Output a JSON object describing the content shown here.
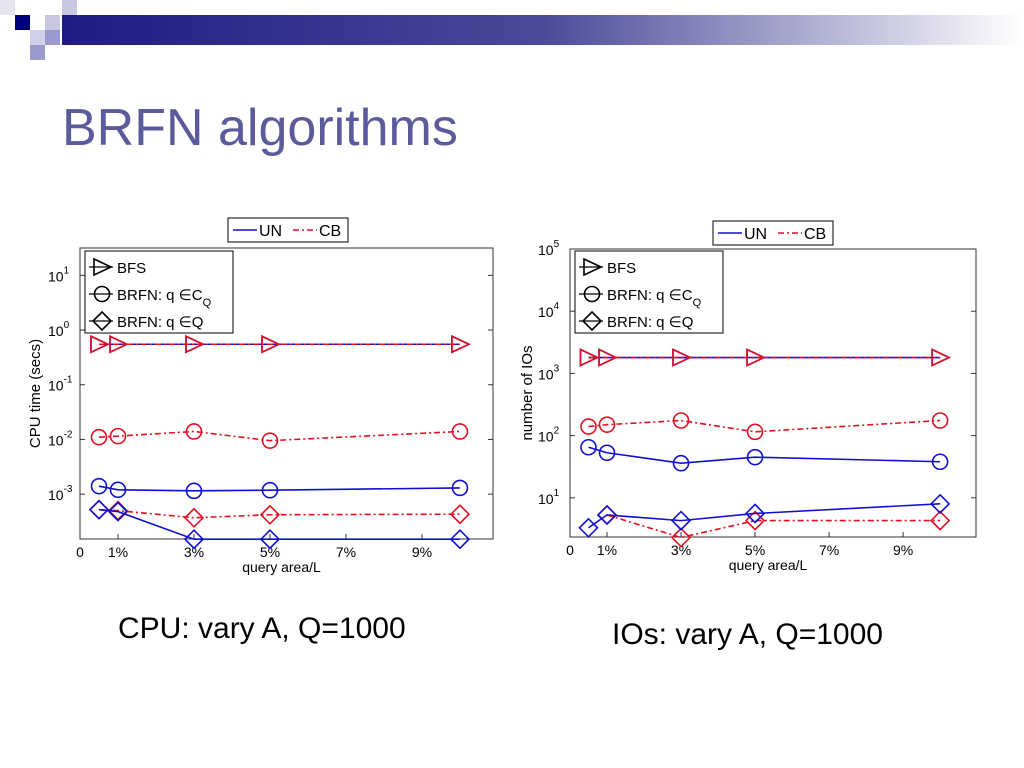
{
  "slide": {
    "title": "BRFN algorithms",
    "captions": [
      "CPU: vary A, Q=1000",
      "IOs: vary A, Q=1000"
    ]
  },
  "colors": {
    "UN": "#1010d0",
    "CB": "#e01020",
    "title": "#5b5b9b"
  },
  "chart_data": [
    {
      "type": "line",
      "ylabel": "CPU time (secs)",
      "xlabel": "query area/L",
      "yscale": "log",
      "ylim_exp": [
        -3.82,
        1.5
      ],
      "ytick_exps": [
        1,
        0,
        -1,
        -2,
        -3
      ],
      "xlim": [
        0,
        10.87
      ],
      "xticks": [
        0,
        1,
        3,
        5,
        7,
        9
      ],
      "xtick_labels": [
        "0",
        "1%",
        "3%",
        "5%",
        "7%",
        "9%"
      ],
      "x": [
        0.5,
        1,
        3,
        5,
        10
      ],
      "legend_styles": [
        "UN",
        "CB"
      ],
      "legend_markers": [
        {
          "label": "BFS",
          "marker": "triangle"
        },
        {
          "label": "BRFN: q ∈C",
          "sub": "Q",
          "marker": "circle"
        },
        {
          "label": "BRFN: q ∈Q",
          "marker": "diamond"
        }
      ],
      "series": [
        {
          "name": "BFS UN",
          "style": "UN",
          "marker": "triangle",
          "values": [
            0.55,
            0.55,
            0.55,
            0.55,
            0.55
          ]
        },
        {
          "name": "BFS CB",
          "style": "CB",
          "marker": "triangle",
          "values": [
            0.55,
            0.55,
            0.55,
            0.55,
            0.55
          ]
        },
        {
          "name": "BRFN q∈CQ CB",
          "style": "CB",
          "marker": "circle",
          "values": [
            0.011,
            0.0115,
            0.014,
            0.0095,
            0.014
          ]
        },
        {
          "name": "BRFN q∈CQ UN",
          "style": "UN",
          "marker": "circle",
          "values": [
            0.0014,
            0.0012,
            0.00115,
            0.00118,
            0.0013
          ]
        },
        {
          "name": "BRFN q∈Q CB",
          "style": "CB",
          "marker": "diamond",
          "values": [
            0.00052,
            0.0005,
            0.00037,
            0.00042,
            0.00043
          ]
        },
        {
          "name": "BRFN q∈Q UN",
          "style": "UN",
          "marker": "diamond",
          "values": [
            0.00052,
            0.00048,
            0.00015,
            0.00015,
            0.00015
          ]
        }
      ]
    },
    {
      "type": "line",
      "ylabel": "number of IOs",
      "xlabel": "query area/L",
      "yscale": "log",
      "ylim_exp": [
        0.37,
        5
      ],
      "ytick_exps": [
        5,
        4,
        3,
        2,
        1
      ],
      "xlim": [
        0,
        10.97
      ],
      "xticks": [
        0,
        1,
        3,
        5,
        7,
        9
      ],
      "xtick_labels": [
        "0",
        "1%",
        "3%",
        "5%",
        "7%",
        "9%"
      ],
      "x": [
        0.5,
        1,
        3,
        5,
        10
      ],
      "legend_styles": [
        "UN",
        "CB"
      ],
      "legend_markers": [
        {
          "label": "BFS",
          "marker": "triangle"
        },
        {
          "label": "BRFN: q ∈C",
          "sub": "Q",
          "marker": "circle"
        },
        {
          "label": "BRFN: q ∈Q",
          "marker": "diamond"
        }
      ],
      "series": [
        {
          "name": "BFS UN",
          "style": "UN",
          "marker": "triangle",
          "values": [
            1800,
            1800,
            1800,
            1800,
            1800
          ]
        },
        {
          "name": "BFS CB",
          "style": "CB",
          "marker": "triangle",
          "values": [
            1800,
            1800,
            1800,
            1800,
            1800
          ]
        },
        {
          "name": "BRFN q∈CQ CB",
          "style": "CB",
          "marker": "circle",
          "values": [
            140,
            150,
            175,
            115,
            175
          ]
        },
        {
          "name": "BRFN q∈CQ UN",
          "style": "UN",
          "marker": "circle",
          "values": [
            65,
            53,
            36,
            45,
            38
          ]
        },
        {
          "name": "BRFN q∈Q CB",
          "style": "CB",
          "marker": "diamond",
          "values": [
            null,
            5.3,
            2.3,
            4.3,
            4.3
          ]
        },
        {
          "name": "BRFN q∈Q UN",
          "style": "UN",
          "marker": "diamond",
          "values": [
            3.3,
            5.3,
            4.3,
            5.6,
            8
          ]
        }
      ]
    }
  ]
}
